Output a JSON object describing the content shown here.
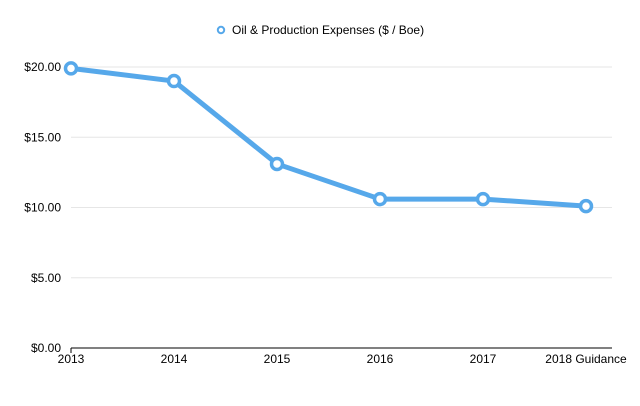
{
  "chart_data": {
    "type": "line",
    "categories": [
      "2013",
      "2014",
      "2015",
      "2016",
      "2017",
      "2018 Guidance"
    ],
    "series": [
      {
        "name": "Oil & Production Expenses ($ / Boe)",
        "values": [
          19.9,
          19.0,
          13.1,
          10.6,
          10.6,
          10.1
        ],
        "color": "#56a8ea"
      }
    ],
    "ylim": [
      0,
      20
    ],
    "yticks": [
      0,
      5,
      10,
      15,
      20
    ],
    "ytick_labels": [
      "$0.00",
      "$5.00",
      "$10.00",
      "$15.00",
      "$20.00"
    ],
    "legend_position": "top-center",
    "grid": true,
    "gridline_color": "#e6e6e6",
    "axis_color": "#000000",
    "title": "",
    "xlabel": "",
    "ylabel": ""
  }
}
